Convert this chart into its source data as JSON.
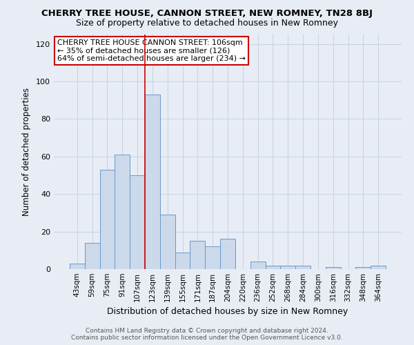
{
  "title": "CHERRY TREE HOUSE, CANNON STREET, NEW ROMNEY, TN28 8BJ",
  "subtitle": "Size of property relative to detached houses in New Romney",
  "xlabel": "Distribution of detached houses by size in New Romney",
  "ylabel": "Number of detached properties",
  "bar_labels": [
    "43sqm",
    "59sqm",
    "75sqm",
    "91sqm",
    "107sqm",
    "123sqm",
    "139sqm",
    "155sqm",
    "171sqm",
    "187sqm",
    "204sqm",
    "220sqm",
    "236sqm",
    "252sqm",
    "268sqm",
    "284sqm",
    "300sqm",
    "316sqm",
    "332sqm",
    "348sqm",
    "364sqm"
  ],
  "bar_values": [
    3,
    14,
    53,
    61,
    50,
    93,
    29,
    9,
    15,
    12,
    16,
    0,
    4,
    2,
    2,
    2,
    0,
    1,
    0,
    1,
    2
  ],
  "bar_color": "#ccd9ea",
  "bar_edge_color": "#6699cc",
  "grid_color": "#c8d4e3",
  "bg_color": "#e8edf5",
  "red_line_index": 4.5,
  "annotation_text": "CHERRY TREE HOUSE CANNON STREET: 106sqm\n← 35% of detached houses are smaller (126)\n64% of semi-detached houses are larger (234) →",
  "annotation_box_facecolor": "#ffffff",
  "annotation_box_edgecolor": "#cc0000",
  "footer_line1": "Contains HM Land Registry data © Crown copyright and database right 2024.",
  "footer_line2": "Contains public sector information licensed under the Open Government Licence v3.0.",
  "ylim": [
    0,
    125
  ],
  "yticks": [
    0,
    20,
    40,
    60,
    80,
    100,
    120
  ]
}
